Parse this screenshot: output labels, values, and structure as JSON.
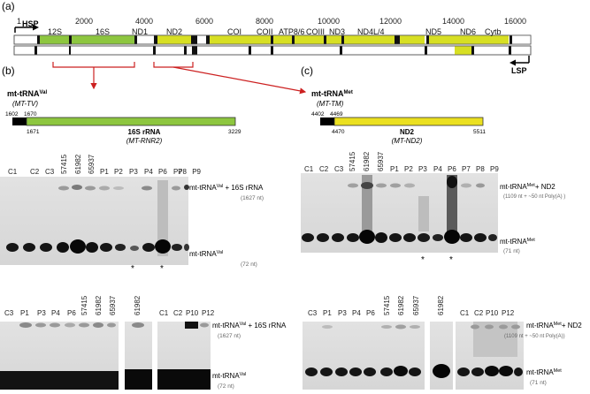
{
  "panels": {
    "a": "(a)",
    "b": "(b)",
    "c": "(c)"
  },
  "genome": {
    "ticks": [
      "1",
      "2000",
      "4000",
      "6000",
      "8000",
      "10000",
      "12000",
      "14000",
      "16000"
    ],
    "genes": [
      "12S",
      "16S",
      "ND1",
      "ND2",
      "COI",
      "COII",
      "ATP8/6",
      "COIII",
      "ND3",
      "ND4L/4",
      "ND5",
      "ND6",
      "Cytb"
    ],
    "hsp": "HSP",
    "lsp": "LSP"
  },
  "b_header": {
    "trna": "mt-tRNA",
    "trna_sup": "Val",
    "gene": "(MT-TV)",
    "pos": [
      "1602",
      "1670",
      "1671",
      "3229"
    ],
    "rrna": "16S rRNA",
    "rrna_gene": "(MT-RNR2)"
  },
  "c_header": {
    "trna": "mt-tRNA",
    "trna_sup": "Met",
    "gene": "(MT-TM)",
    "pos": [
      "4402",
      "4469",
      "4470",
      "5511"
    ],
    "nd": "ND2",
    "nd_gene": "(MT-ND2)"
  },
  "blot_b1": {
    "lanes": [
      "C1",
      "C2",
      "C3",
      "57415",
      "61982",
      "65937",
      "P1",
      "P2",
      "P3",
      "P4",
      "P6",
      "P7",
      "P8",
      "P9"
    ],
    "upper": "mt-tRNA",
    "upper_sup": "Val",
    "upper_suffix": " + 16S rRNA",
    "upper_size": "(1627 nt)",
    "lower": "mt-tRNA",
    "lower_sup": "Val",
    "lower_size": "(72 nt)",
    "asterisk": "*"
  },
  "blot_c1": {
    "lanes": [
      "C1",
      "C2",
      "C3",
      "57415",
      "61982",
      "65937",
      "P1",
      "P2",
      "P3",
      "P4",
      "P6",
      "P7",
      "P8",
      "P9"
    ],
    "upper": "mt-tRNA",
    "upper_sup": "Met",
    "upper_suffix": "+ ND2",
    "upper_size": "(1109 nt + ~50 nt Poly(A) )",
    "lower": "mt-tRNA",
    "lower_sup": "Met",
    "lower_size": "(71 nt)",
    "asterisk": "*"
  },
  "blot_b2": {
    "lanes_a": [
      "C3",
      "P1",
      "P3",
      "P4",
      "P6",
      "57415",
      "61982",
      "65937"
    ],
    "lanes_b": [
      "61982"
    ],
    "lanes_c": [
      "C1",
      "C2",
      "P10",
      "P12"
    ],
    "upper": "mt-tRNA",
    "upper_sup": "Val",
    "upper_suffix": " + 16S rRNA",
    "upper_size": "(1627 nt)",
    "lower": "mt-tRNA",
    "lower_sup": "Val",
    "lower_size": "(72 nt)"
  },
  "blot_c2": {
    "lanes_a": [
      "C3",
      "P1",
      "P3",
      "P4",
      "P6",
      "57415",
      "61982",
      "65937"
    ],
    "lanes_b": [
      "61982"
    ],
    "lanes_c": [
      "C1",
      "C2",
      "P10",
      "P12"
    ],
    "upper": "mt-tRNA",
    "upper_sup": "Met",
    "upper_suffix": "+ ND2",
    "upper_size": "(1109 nt + ~50 nt Poly(A))",
    "lower": "mt-tRNA",
    "lower_sup": "Met",
    "lower_size": "(71 nt)"
  }
}
